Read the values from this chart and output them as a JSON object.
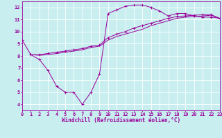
{
  "bg_color": "#c8eef0",
  "grid_color": "#ffffff",
  "line_color": "#990099",
  "xlabel": "Windchill (Refroidissement éolien,°C)",
  "xlim": [
    0,
    23
  ],
  "ylim": [
    3.5,
    12.5
  ],
  "yticks": [
    4,
    5,
    6,
    7,
    8,
    9,
    10,
    11,
    12
  ],
  "xticks": [
    0,
    1,
    2,
    3,
    4,
    5,
    6,
    7,
    8,
    9,
    10,
    11,
    12,
    13,
    14,
    15,
    16,
    17,
    18,
    19,
    20,
    21,
    22,
    23
  ],
  "line1_x": [
    0,
    1,
    2,
    3,
    4,
    5,
    6,
    7,
    8,
    9,
    10,
    11,
    12,
    13,
    14,
    15,
    16,
    17,
    18,
    19,
    20,
    21,
    22,
    23
  ],
  "line1_y": [
    9.3,
    8.1,
    7.7,
    6.8,
    5.5,
    5.0,
    5.0,
    4.0,
    5.0,
    6.5,
    11.5,
    11.8,
    12.1,
    12.2,
    12.2,
    12.0,
    11.7,
    11.3,
    11.5,
    11.5,
    11.3,
    11.2,
    11.2,
    11.1
  ],
  "line2_x": [
    1,
    2,
    3,
    4,
    5,
    6,
    7,
    8,
    9,
    10,
    11,
    12,
    13,
    14,
    15,
    16,
    17,
    18,
    19,
    20,
    21,
    22,
    23
  ],
  "line2_y": [
    8.1,
    8.1,
    8.2,
    8.3,
    8.4,
    8.5,
    8.6,
    8.8,
    8.9,
    9.5,
    9.8,
    10.0,
    10.3,
    10.5,
    10.7,
    10.9,
    11.1,
    11.25,
    11.3,
    11.35,
    11.4,
    11.4,
    11.1
  ],
  "line3_x": [
    1,
    2,
    3,
    4,
    5,
    6,
    7,
    8,
    9,
    10,
    11,
    12,
    13,
    14,
    15,
    16,
    17,
    18,
    19,
    20,
    21,
    22,
    23
  ],
  "line3_y": [
    8.1,
    8.05,
    8.1,
    8.2,
    8.3,
    8.4,
    8.5,
    8.7,
    8.8,
    9.3,
    9.6,
    9.8,
    10.0,
    10.2,
    10.5,
    10.7,
    10.9,
    11.1,
    11.2,
    11.25,
    11.3,
    11.35,
    11.1
  ],
  "marker": "+",
  "label_fontsize": 5.5,
  "tick_fontsize": 5.0,
  "xlabel_fontsize": 5.5,
  "linewidth": 0.7,
  "markersize": 2.5,
  "markeredgewidth": 0.7
}
